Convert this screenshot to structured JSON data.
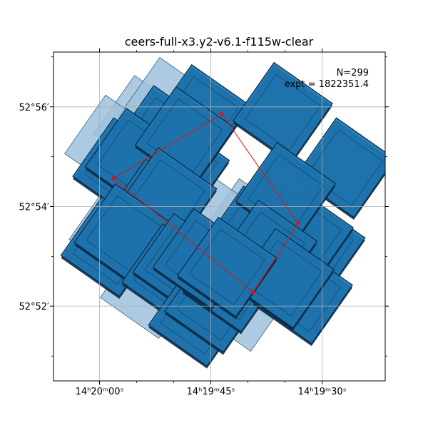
{
  "chart_data": {
    "type": "scatter",
    "title": "ceers-full-x3.y2-v6.1-f115w-clear",
    "annotation": {
      "count": "N=299",
      "exposure": "expt = 1822351.4"
    },
    "xlabel": "",
    "ylabel": "",
    "x_ticks": [
      {
        "value": 1200,
        "label": "14ʰ20ᵐ00ˢ"
      },
      {
        "value": 1185,
        "label": "14ʰ19ᵐ45ˢ"
      },
      {
        "value": 1170,
        "label": "14ʰ19ᵐ30ˢ"
      }
    ],
    "y_ticks": [
      {
        "value": 52.9333,
        "label": "52°56′"
      },
      {
        "value": 52.9,
        "label": "52°54′"
      },
      {
        "value": 52.8667,
        "label": "52°52′"
      }
    ],
    "x_minor_ticks": [
      1195,
      1190,
      1180,
      1175
    ],
    "y_minor_ticks": [
      52.95,
      52.9167,
      52.8833,
      52.85
    ],
    "xlim": [
      1206.2,
      1161.5
    ],
    "ylim": [
      52.8417,
      52.9516
    ],
    "grid": true,
    "footprint_color": "#1f77b4",
    "footprint_edge_color": "#0b2a45",
    "light_footprint_color": "#9ec2dd",
    "outline_color": "#e3120b",
    "outline_points": [
      {
        "ra": 1198.15,
        "dec": 52.9093
      },
      {
        "ra": 1183.5,
        "dec": 52.9309
      },
      {
        "ra": 1173.25,
        "dec": 52.8943
      },
      {
        "ra": 1179.3,
        "dec": 52.8713
      }
    ],
    "footprints": [
      {
        "ra": 1194.1,
        "dec": 52.9272,
        "light": true
      },
      {
        "ra": 1190.7,
        "dec": 52.9332,
        "light": true
      },
      {
        "ra": 1198.0,
        "dec": 52.9206,
        "light": true
      },
      {
        "ra": 1197.4,
        "dec": 52.8919,
        "light": true
      },
      {
        "ra": 1193.2,
        "dec": 52.8725,
        "light": true
      },
      {
        "ra": 1180.8,
        "dec": 52.8682,
        "light": true
      },
      {
        "ra": 1180.0,
        "dec": 52.8927,
        "light": true
      },
      {
        "ra": 1184.6,
        "dec": 52.8952,
        "light": true
      },
      {
        "ra": 1189.2,
        "dec": 52.9125
      },
      {
        "ra": 1191.5,
        "dec": 52.9238
      },
      {
        "ra": 1196.9,
        "dec": 52.913
      },
      {
        "ra": 1195.2,
        "dec": 52.9162
      },
      {
        "ra": 1186.4,
        "dec": 52.9308
      },
      {
        "ra": 1188.5,
        "dec": 52.9234
      },
      {
        "ra": 1175.3,
        "dec": 52.9315
      },
      {
        "ra": 1166.9,
        "dec": 52.913
      },
      {
        "ra": 1192.6,
        "dec": 52.8992
      },
      {
        "ra": 1190.9,
        "dec": 52.903
      },
      {
        "ra": 1198.5,
        "dec": 52.8866
      },
      {
        "ra": 1196.7,
        "dec": 52.8909
      },
      {
        "ra": 1190.3,
        "dec": 52.8776
      },
      {
        "ra": 1188.8,
        "dec": 52.881
      },
      {
        "ra": 1186.7,
        "dec": 52.8633
      },
      {
        "ra": 1184.5,
        "dec": 52.8679
      },
      {
        "ra": 1182.1,
        "dec": 52.8748
      },
      {
        "ra": 1186.1,
        "dec": 52.8826
      },
      {
        "ra": 1177.1,
        "dec": 52.8952
      },
      {
        "ra": 1179.4,
        "dec": 52.8902
      },
      {
        "ra": 1170.9,
        "dec": 52.8866
      },
      {
        "ra": 1172.5,
        "dec": 52.89
      },
      {
        "ra": 1174.9,
        "dec": 52.9047
      },
      {
        "ra": 1177.4,
        "dec": 52.8855
      },
      {
        "ra": 1172.6,
        "dec": 52.8708
      },
      {
        "ra": 1175.1,
        "dec": 52.876
      },
      {
        "ra": 1182.8,
        "dec": 52.8798
      }
    ]
  }
}
